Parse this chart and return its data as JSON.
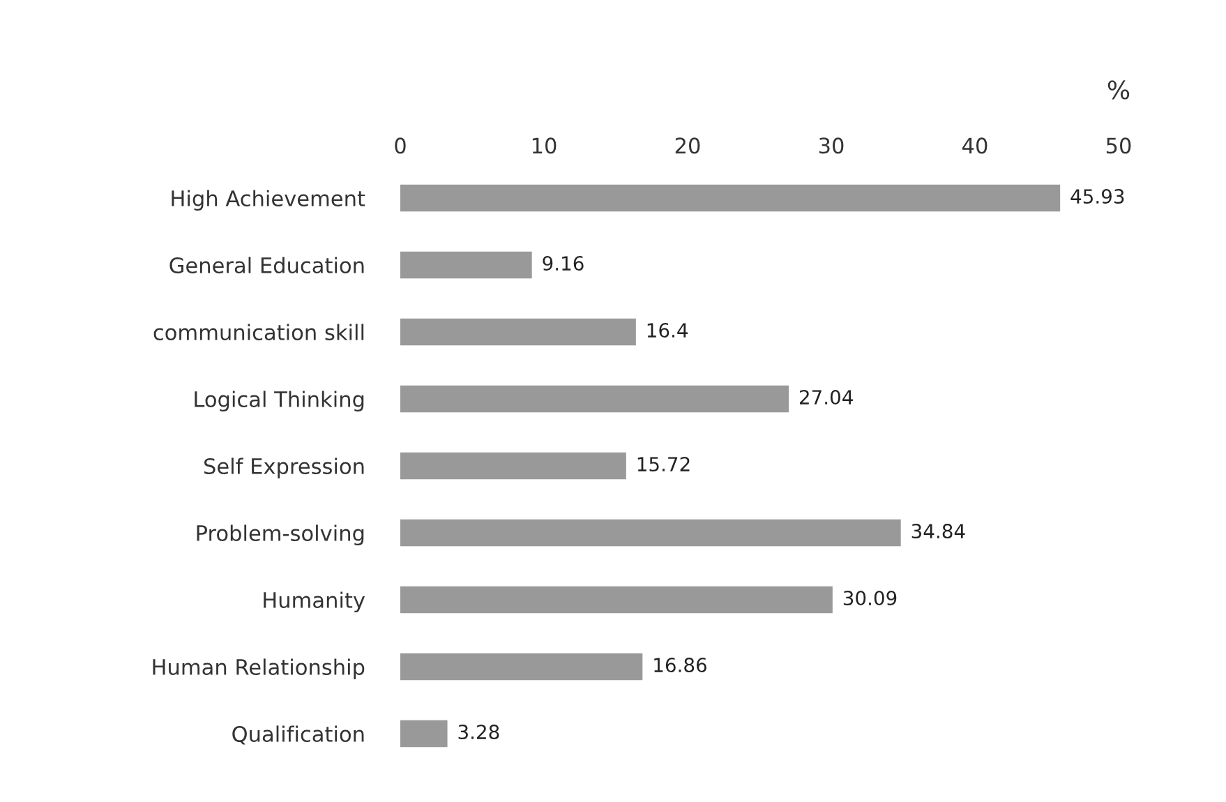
{
  "chart_data": {
    "type": "bar",
    "orientation": "horizontal",
    "xlabel": "%",
    "categories": [
      "High Achievement",
      "General Education",
      "communication skill",
      "Logical Thinking",
      "Self Expression",
      "Problem-solving",
      "Humanity",
      "Human Relationship",
      "Qualification"
    ],
    "values": [
      45.93,
      9.16,
      16.4,
      27.04,
      15.72,
      34.84,
      30.09,
      16.86,
      3.28
    ],
    "color": "#999999",
    "xlim": [
      0,
      50
    ],
    "xticks": [
      0,
      10,
      20,
      30,
      40,
      50
    ],
    "data_labels": true,
    "grid": false,
    "legend": false
  }
}
